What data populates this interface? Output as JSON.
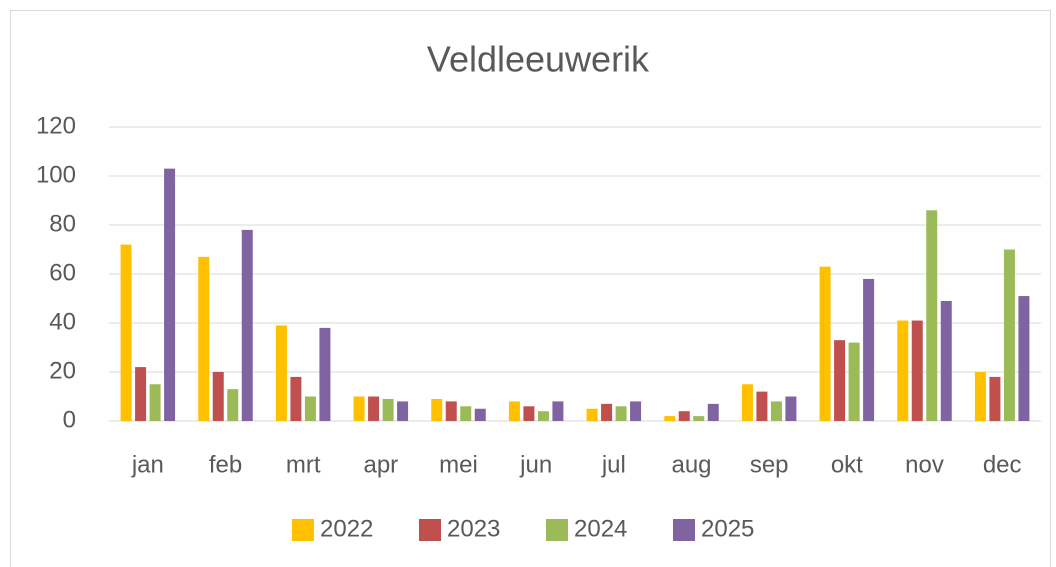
{
  "chart_data": {
    "type": "bar",
    "title": "Veldleeuwerik",
    "categories": [
      "jan",
      "feb",
      "mrt",
      "apr",
      "mei",
      "jun",
      "jul",
      "aug",
      "sep",
      "okt",
      "nov",
      "dec"
    ],
    "series": [
      {
        "name": "2022",
        "color": "#FFC000",
        "values": [
          72,
          67,
          39,
          10,
          9,
          8,
          5,
          2,
          15,
          63,
          41,
          20
        ]
      },
      {
        "name": "2023",
        "color": "#C0504D",
        "values": [
          22,
          20,
          18,
          10,
          8,
          6,
          7,
          4,
          12,
          33,
          41,
          18
        ]
      },
      {
        "name": "2024",
        "color": "#9BBB59",
        "values": [
          15,
          13,
          10,
          9,
          6,
          4,
          6,
          2,
          8,
          32,
          86,
          70
        ]
      },
      {
        "name": "2025",
        "color": "#8064A2",
        "values": [
          103,
          78,
          38,
          8,
          5,
          8,
          8,
          7,
          10,
          58,
          49,
          51
        ]
      }
    ],
    "ylim": [
      0,
      120
    ],
    "yticks": [
      0,
      20,
      40,
      60,
      80,
      100,
      120
    ],
    "grid": true,
    "legend": "bottom"
  }
}
